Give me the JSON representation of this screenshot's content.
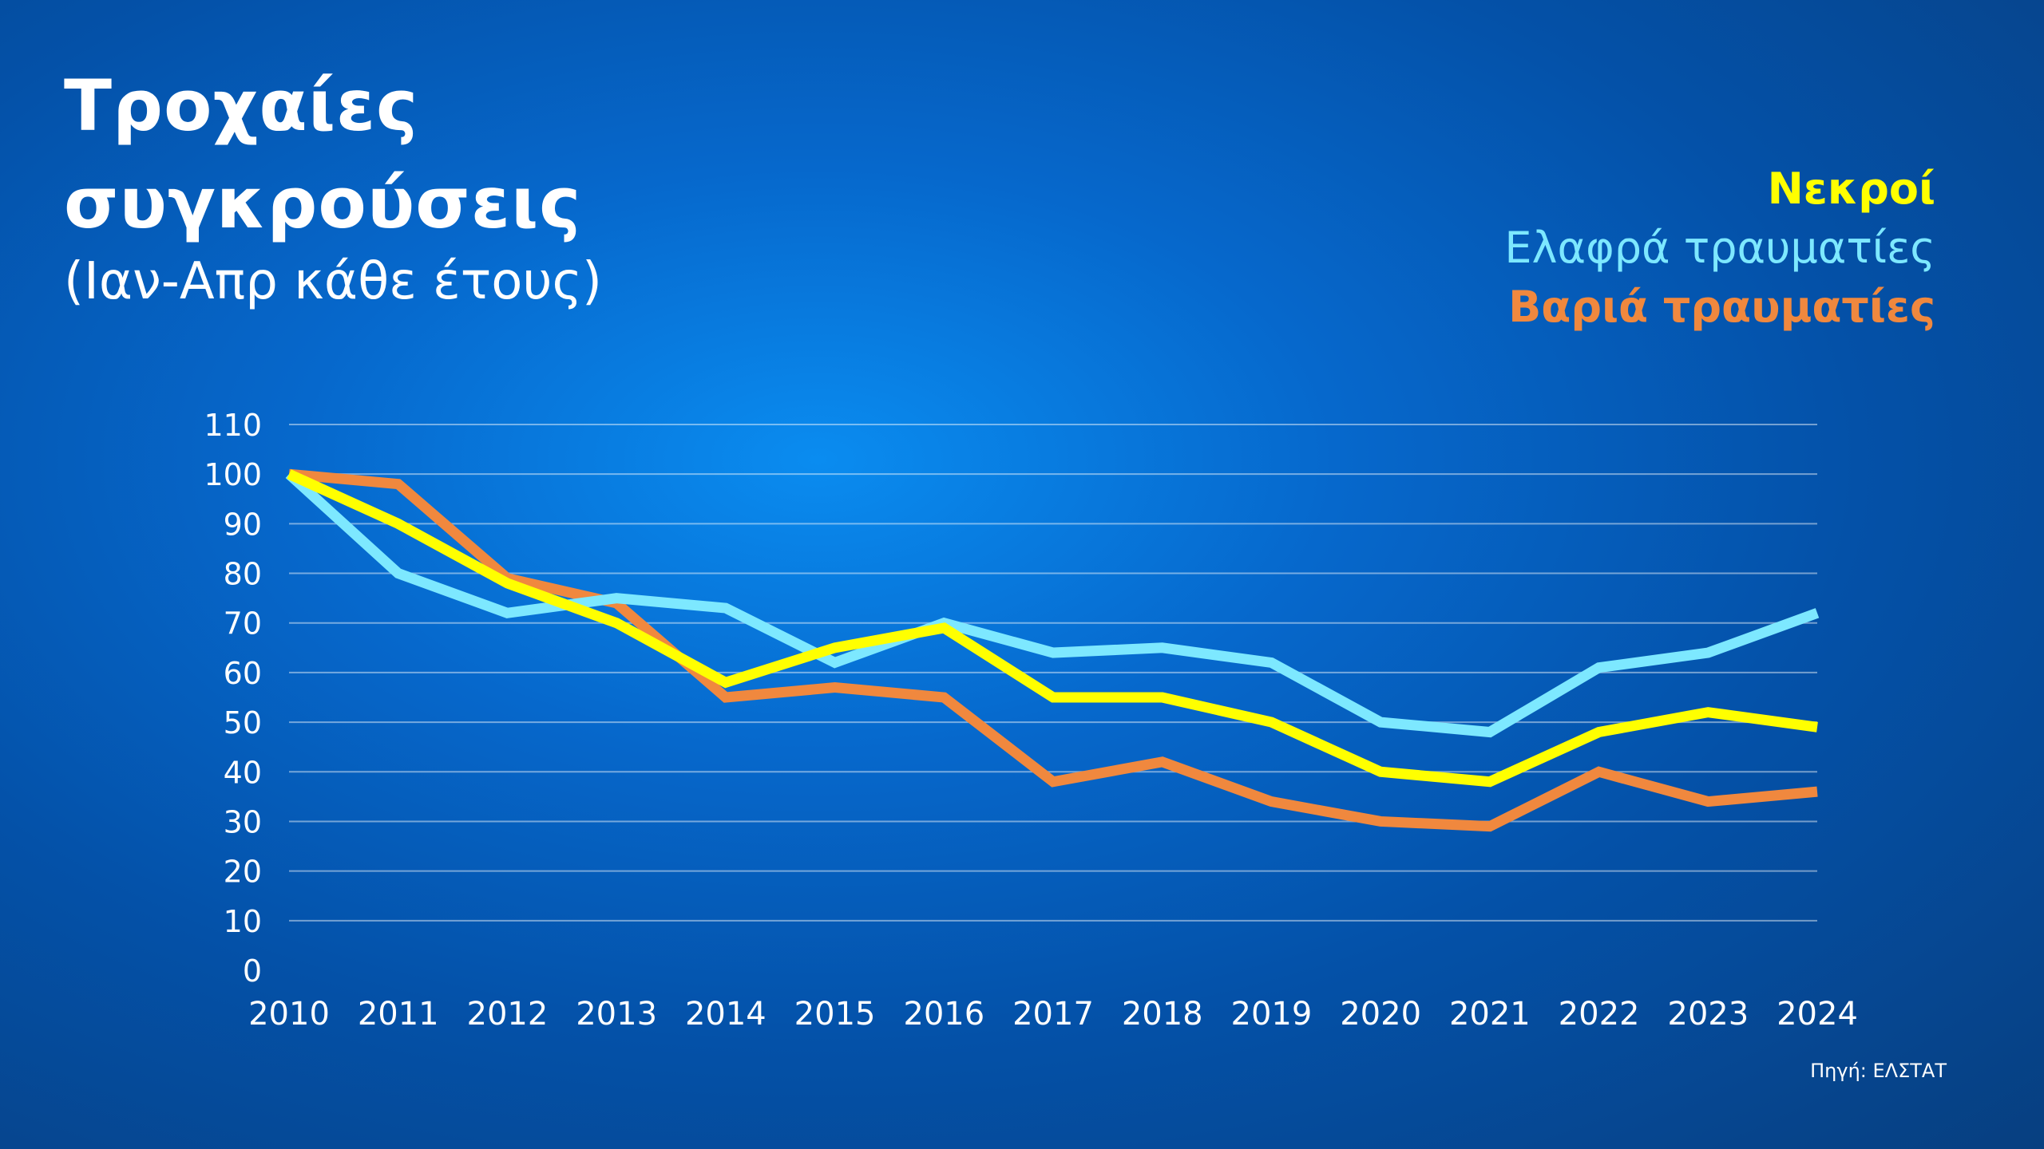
{
  "title": {
    "line1": "Τροχαίες",
    "line2": "συγκρούσεις"
  },
  "subtitle": "(Ιαν-Απρ κάθε έτους)",
  "source": "Πηγή: ΕΛΣΤΑΤ",
  "chart_data": {
    "type": "line",
    "x": [
      "2010",
      "2011",
      "2012",
      "2013",
      "2014",
      "2015",
      "2016",
      "2017",
      "2018",
      "2019",
      "2020",
      "2021",
      "2022",
      "2023",
      "2024"
    ],
    "ylim": [
      0,
      110
    ],
    "yticks": [
      0,
      10,
      20,
      30,
      40,
      50,
      60,
      70,
      80,
      90,
      100,
      110
    ],
    "grid": true,
    "legend_placement": "top-right",
    "series": [
      {
        "name": "Βαριά τραυματίες",
        "color": "#f0883e",
        "values": [
          100,
          98,
          79,
          74,
          55,
          57,
          55,
          38,
          42,
          34,
          30,
          29,
          40,
          34,
          36
        ]
      },
      {
        "name": "Ελαφρά τραυματίες",
        "color": "#7de8ff",
        "values": [
          100,
          80,
          72,
          75,
          73,
          62,
          70,
          64,
          65,
          62,
          50,
          48,
          61,
          64,
          72
        ]
      },
      {
        "name": "Νεκροί",
        "color": "#ffff00",
        "values": [
          100,
          90,
          78,
          70,
          58,
          65,
          69,
          55,
          55,
          50,
          40,
          38,
          48,
          52,
          49
        ]
      }
    ]
  }
}
